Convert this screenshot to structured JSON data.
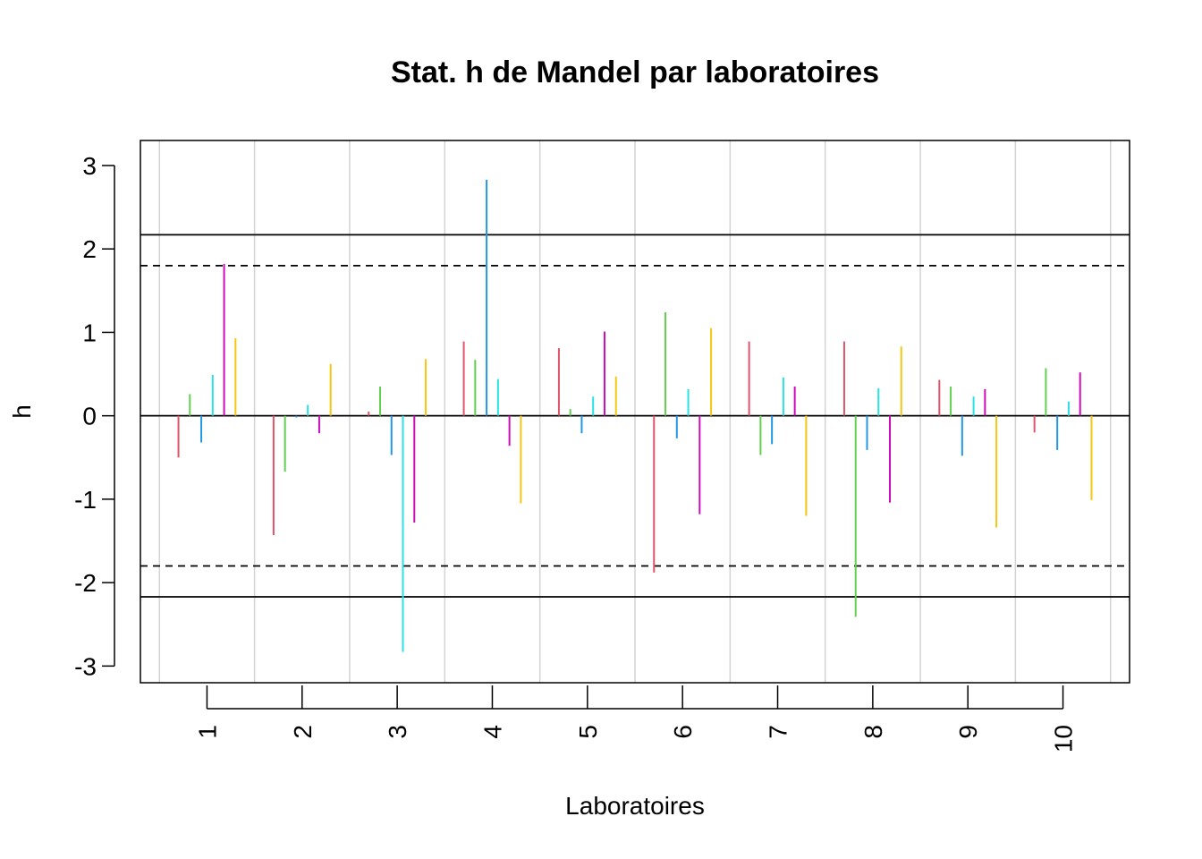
{
  "chart_data": {
    "type": "bar",
    "title": "Stat. h de Mandel par laboratoires",
    "xlabel": "Laboratoires",
    "ylabel": "h",
    "ylim": [
      -3.2,
      3.3
    ],
    "yticks": [
      "3",
      "2",
      "1",
      "0",
      "-1",
      "-2",
      "-3"
    ],
    "ytick_values": [
      3,
      2,
      1,
      0,
      -1,
      -2,
      -3
    ],
    "categories": [
      "1",
      "2",
      "3",
      "4",
      "5",
      "6",
      "7",
      "8",
      "9",
      "10"
    ],
    "grid": "vertical separators between laboratories",
    "reference_lines": [
      {
        "value": 2.17,
        "style": "solid"
      },
      {
        "value": 1.8,
        "style": "dashed"
      },
      {
        "value": -1.8,
        "style": "dashed"
      },
      {
        "value": -2.17,
        "style": "solid"
      }
    ],
    "series": [
      {
        "color": "#df536b",
        "values": [
          -0.5,
          -1.43,
          0.05,
          0.89,
          0.81,
          -1.88,
          0.89,
          0.89,
          0.43,
          -0.2
        ]
      },
      {
        "color": "#61d04f",
        "values": [
          0.26,
          -0.67,
          0.35,
          0.67,
          0.08,
          1.24,
          -0.47,
          -2.41,
          0.35,
          0.57
        ]
      },
      {
        "color": "#2297e6",
        "values": [
          -0.32,
          -0.02,
          -0.47,
          2.83,
          -0.21,
          -0.27,
          -0.34,
          -0.41,
          -0.48,
          -0.41
        ]
      },
      {
        "color": "#28e2e5",
        "values": [
          0.49,
          0.13,
          -2.83,
          0.44,
          0.23,
          0.32,
          0.46,
          0.33,
          0.23,
          0.17
        ]
      },
      {
        "color": "#cd0bbc",
        "values": [
          1.82,
          -0.21,
          -1.28,
          -0.36,
          1.01,
          -1.18,
          0.35,
          -1.04,
          0.32,
          0.52
        ]
      },
      {
        "color": "#f5c710",
        "values": [
          0.93,
          0.62,
          0.68,
          -1.05,
          0.47,
          1.05,
          -1.2,
          0.83,
          -1.34,
          -1.01
        ]
      }
    ]
  }
}
